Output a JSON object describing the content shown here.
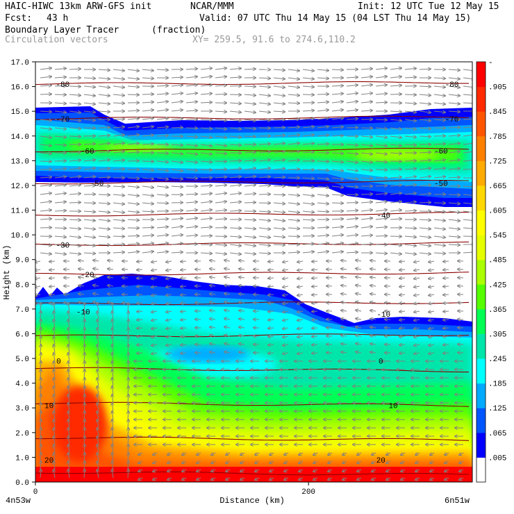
{
  "header": {
    "line1_left": "HAIC-HIWC 13km ARW-GFS init",
    "line1_mid": "NCAR/MMM",
    "line1_right": "Init: 12 UTC Tue 12 May 15",
    "fcst_label": "Fcst:",
    "fcst_value": "43 h",
    "valid": "Valid: 07 UTC Thu 14 May 15 (04 LST Thu 14 May 15)",
    "field": "Boundary Layer Tracer",
    "field_units": "(fraction)",
    "overlay": "Circulation vectors",
    "xy": "XY= 259.5, 91.6 to 274.6,110.2"
  },
  "colors": {
    "contour_line": "#8b0000",
    "vector": "#808080",
    "filled_scale": [
      "#ffffff",
      "#0000ff",
      "#0055ff",
      "#00aaff",
      "#00ffff",
      "#00e6aa",
      "#00ff55",
      "#55ff00",
      "#aaff00",
      "#e6ff00",
      "#ffff00",
      "#ffd700",
      "#ffaa00",
      "#ff8000",
      "#ff5500",
      "#ff2a00",
      "#ff0000"
    ]
  },
  "chart_data": {
    "type": "heatmap",
    "title": "Boundary Layer Tracer",
    "xlabel": "Distance (km)",
    "ylabel": "Height (km)",
    "xlim": [
      0,
      320
    ],
    "ylim": [
      0,
      17
    ],
    "x_tick_labels": [
      "0",
      "200"
    ],
    "x_ticks": [
      0,
      200
    ],
    "x_end_labels": [
      "4n53w",
      "6n51w"
    ],
    "y_ticks": [
      0,
      1,
      2,
      3,
      4,
      5,
      6,
      7,
      8,
      9,
      10,
      11,
      12,
      13,
      14,
      15,
      16,
      17
    ],
    "y_tick_labels": [
      "0.0",
      "1.0",
      "2.0",
      "3.0",
      "4.0",
      "5.0",
      "6.0",
      "7.0",
      "8.0",
      "9.0",
      "10.0",
      "11.0",
      "12.0",
      "13.0",
      "14.0",
      "15.0",
      "16.0",
      "17.0"
    ],
    "colorbar_labels": [
      ".005",
      ".065",
      ".125",
      ".185",
      ".245",
      ".305",
      ".365",
      ".425",
      ".485",
      ".545",
      ".605",
      ".665",
      ".725",
      ".785",
      ".845",
      ".905",
      "-"
    ],
    "contour_labels": [
      {
        "text": "-80",
        "x": 20,
        "y": 16.1
      },
      {
        "text": "-80",
        "x": 305,
        "y": 16.1
      },
      {
        "text": "-70",
        "x": 20,
        "y": 14.7
      },
      {
        "text": "-70",
        "x": 305,
        "y": 14.7
      },
      {
        "text": "-60",
        "x": 38,
        "y": 13.4
      },
      {
        "text": "-60",
        "x": 297,
        "y": 13.4
      },
      {
        "text": "-50",
        "x": 45,
        "y": 12.1
      },
      {
        "text": "-50",
        "x": 297,
        "y": 12.1
      },
      {
        "text": "-40",
        "x": 255,
        "y": 10.8
      },
      {
        "text": "-30",
        "x": 20,
        "y": 9.6
      },
      {
        "text": "-20",
        "x": 38,
        "y": 8.4
      },
      {
        "text": "-10",
        "x": 35,
        "y": 6.9
      },
      {
        "text": "-10",
        "x": 255,
        "y": 6.8
      },
      {
        "text": "0",
        "x": 17,
        "y": 4.9
      },
      {
        "text": "0",
        "x": 253,
        "y": 4.9
      },
      {
        "text": "10",
        "x": 10,
        "y": 3.1
      },
      {
        "text": "10",
        "x": 262,
        "y": 3.1
      },
      {
        "text": "20",
        "x": 10,
        "y": 0.9
      },
      {
        "text": "20",
        "x": 253,
        "y": 0.9
      }
    ],
    "isotherms_y": [
      0.4,
      1.8,
      3.2,
      4.6,
      5.9,
      7.2,
      8.4,
      9.6,
      10.8,
      12.1,
      13.4,
      14.7,
      16.1
    ],
    "tracer_regions": [
      {
        "level": "high",
        "note": "near-surface layer"
      },
      {
        "level": "mid",
        "note": "boundary layer plume"
      },
      {
        "level": "low",
        "note": "upper layer 12-15 km"
      }
    ]
  }
}
